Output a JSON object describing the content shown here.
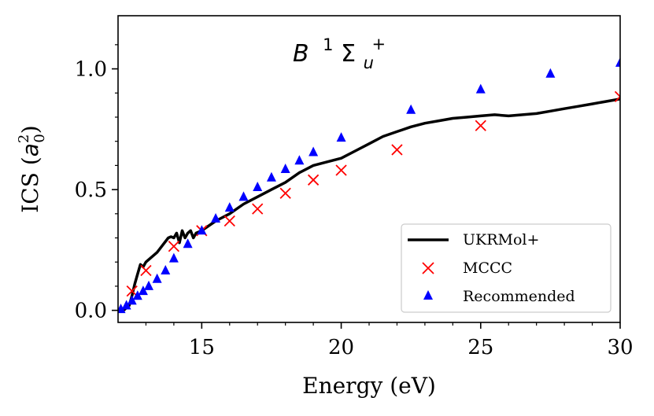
{
  "chart_data": {
    "type": "line",
    "title": "B ¹Σu⁺",
    "title_parts": {
      "letter": "B",
      "sup": "1",
      "symbol": "Σ",
      "sub": "u",
      "sup2": "+"
    },
    "xlabel": "Energy (eV)",
    "ylabel_parts": {
      "prefix": "ICS (",
      "var": "a",
      "sub": "0",
      "sup": "2",
      "suffix": ")"
    },
    "xlim": [
      12,
      30
    ],
    "ylim": [
      -0.05,
      1.22
    ],
    "xticks": [
      15,
      20,
      25,
      30
    ],
    "yticks": [
      0.0,
      0.5,
      1.0
    ],
    "xtick_labels": [
      "15",
      "20",
      "25",
      "30"
    ],
    "ytick_labels": [
      "0.0",
      "0.5",
      "1.0"
    ],
    "legend_position": "lower-right",
    "series": [
      {
        "name": "UKRMol+",
        "kind": "line",
        "color": "#000000",
        "x": [
          12.2,
          12.4,
          12.5,
          12.6,
          12.7,
          12.8,
          12.9,
          13.0,
          13.2,
          13.4,
          13.6,
          13.8,
          13.9,
          14.0,
          14.1,
          14.2,
          14.3,
          14.4,
          14.5,
          14.6,
          14.7,
          14.8,
          15.0,
          15.5,
          16.0,
          16.5,
          17.0,
          17.5,
          18.0,
          18.5,
          19.0,
          19.5,
          20.0,
          20.5,
          21.0,
          21.5,
          22.0,
          22.5,
          23.0,
          23.5,
          24.0,
          24.5,
          25.0,
          25.5,
          26.0,
          26.5,
          27.0,
          27.5,
          28.0,
          28.5,
          29.0,
          29.5,
          30.0
        ],
        "y": [
          0.0,
          0.02,
          0.06,
          0.11,
          0.15,
          0.19,
          0.18,
          0.2,
          0.22,
          0.24,
          0.27,
          0.3,
          0.305,
          0.3,
          0.32,
          0.28,
          0.33,
          0.3,
          0.32,
          0.33,
          0.3,
          0.32,
          0.33,
          0.37,
          0.4,
          0.44,
          0.47,
          0.5,
          0.53,
          0.57,
          0.6,
          0.615,
          0.63,
          0.66,
          0.69,
          0.72,
          0.74,
          0.76,
          0.775,
          0.785,
          0.795,
          0.8,
          0.805,
          0.81,
          0.805,
          0.81,
          0.815,
          0.825,
          0.835,
          0.845,
          0.855,
          0.865,
          0.875
        ]
      },
      {
        "name": "MCCC",
        "kind": "x-marker",
        "color": "#ff0000",
        "x": [
          12.5,
          13.0,
          14.0,
          15.0,
          16.0,
          17.0,
          18.0,
          19.0,
          20.0,
          22.0,
          25.0,
          30.0
        ],
        "y": [
          0.08,
          0.165,
          0.265,
          0.33,
          0.37,
          0.42,
          0.485,
          0.54,
          0.58,
          0.665,
          0.765,
          0.885
        ]
      },
      {
        "name": "Recommended",
        "kind": "triangle-marker",
        "color": "#0000ff",
        "x": [
          12.1,
          12.3,
          12.5,
          12.7,
          12.9,
          13.1,
          13.4,
          13.7,
          14.0,
          14.5,
          15.0,
          15.5,
          16.0,
          16.5,
          17.0,
          17.5,
          18.0,
          18.5,
          19.0,
          20.0,
          22.5,
          25.0,
          27.5,
          30.0
        ],
        "y": [
          0.005,
          0.02,
          0.04,
          0.06,
          0.08,
          0.1,
          0.13,
          0.165,
          0.215,
          0.275,
          0.33,
          0.38,
          0.425,
          0.47,
          0.51,
          0.55,
          0.585,
          0.62,
          0.655,
          0.715,
          0.83,
          0.915,
          0.98,
          1.025
        ]
      }
    ]
  }
}
